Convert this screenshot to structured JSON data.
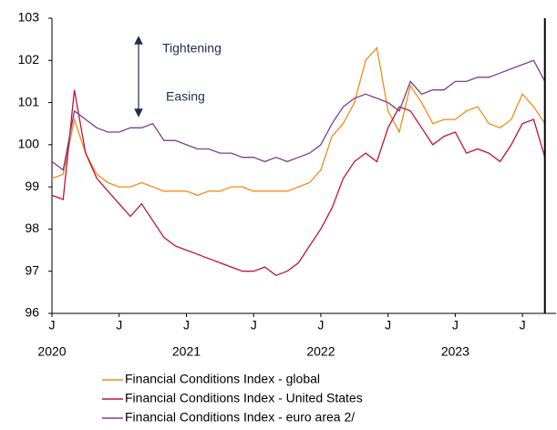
{
  "chart_data": {
    "type": "line",
    "x": [
      "2020-01",
      "2020-02",
      "2020-03",
      "2020-04",
      "2020-05",
      "2020-06",
      "2020-07",
      "2020-08",
      "2020-09",
      "2020-10",
      "2020-11",
      "2020-12",
      "2021-01",
      "2021-02",
      "2021-03",
      "2021-04",
      "2021-05",
      "2021-06",
      "2021-07",
      "2021-08",
      "2021-09",
      "2021-10",
      "2021-11",
      "2021-12",
      "2022-01",
      "2022-02",
      "2022-03",
      "2022-04",
      "2022-05",
      "2022-06",
      "2022-07",
      "2022-08",
      "2022-09",
      "2022-10",
      "2022-11",
      "2022-12",
      "2023-01",
      "2023-02",
      "2023-03",
      "2023-04",
      "2023-05",
      "2023-06",
      "2023-07",
      "2023-08",
      "2023-09"
    ],
    "series": [
      {
        "name": "Financial Conditions Index - global",
        "color": "#f28c1c",
        "values": [
          99.2,
          99.3,
          100.6,
          99.8,
          99.3,
          99.1,
          99.0,
          99.0,
          99.1,
          99.0,
          98.9,
          98.9,
          98.9,
          98.8,
          98.9,
          98.9,
          99.0,
          99.0,
          98.9,
          98.9,
          98.9,
          98.9,
          99.0,
          99.1,
          99.4,
          100.2,
          100.5,
          101.0,
          102.0,
          102.3,
          100.8,
          100.3,
          101.4,
          101.0,
          100.5,
          100.6,
          100.6,
          100.8,
          100.9,
          100.5,
          100.4,
          100.6,
          101.2,
          100.9,
          100.5
        ]
      },
      {
        "name": "Financial Conditions Index - United States",
        "color": "#c0143c",
        "values": [
          98.8,
          98.7,
          101.3,
          99.8,
          99.2,
          98.9,
          98.6,
          98.3,
          98.6,
          98.2,
          97.8,
          97.6,
          97.5,
          97.4,
          97.3,
          97.2,
          97.1,
          97.0,
          97.0,
          97.1,
          96.9,
          97.0,
          97.2,
          97.6,
          98.0,
          98.5,
          99.2,
          99.6,
          99.8,
          99.6,
          100.4,
          100.9,
          100.8,
          100.4,
          100.0,
          100.2,
          100.3,
          99.8,
          99.9,
          99.8,
          99.6,
          100.0,
          100.5,
          100.6,
          99.7
        ]
      },
      {
        "name": "Financial Conditions Index - euro area 2/",
        "color": "#7a3f8c",
        "values": [
          99.6,
          99.4,
          100.8,
          100.6,
          100.4,
          100.3,
          100.3,
          100.4,
          100.4,
          100.5,
          100.1,
          100.1,
          100.0,
          99.9,
          99.9,
          99.8,
          99.8,
          99.7,
          99.7,
          99.6,
          99.7,
          99.6,
          99.7,
          99.8,
          100.0,
          100.5,
          100.9,
          101.1,
          101.2,
          101.1,
          101.0,
          100.8,
          101.5,
          101.2,
          101.3,
          101.3,
          101.5,
          101.5,
          101.6,
          101.6,
          101.7,
          101.8,
          101.9,
          102.0,
          101.5
        ]
      }
    ],
    "xlim": [
      "2020-01",
      "2023-10"
    ],
    "xticks": [
      {
        "value": "2020-01",
        "label": "J"
      },
      {
        "value": "2020-07",
        "label": "J"
      },
      {
        "value": "2021-01",
        "label": "J"
      },
      {
        "value": "2021-07",
        "label": "J"
      },
      {
        "value": "2022-01",
        "label": "J"
      },
      {
        "value": "2022-07",
        "label": "J"
      },
      {
        "value": "2023-01",
        "label": "J"
      },
      {
        "value": "2023-07",
        "label": "J"
      }
    ],
    "year_labels": [
      {
        "value": "2020-01",
        "label": "2020"
      },
      {
        "value": "2021-01",
        "label": "2021"
      },
      {
        "value": "2022-01",
        "label": "2022"
      },
      {
        "value": "2023-01",
        "label": "2023"
      }
    ],
    "ylim": [
      96,
      103
    ],
    "yticks": [
      96,
      97,
      98,
      99,
      100,
      101,
      102,
      103
    ],
    "vline": "2023-09",
    "annotations": [
      "Tightening",
      "Easing"
    ]
  }
}
